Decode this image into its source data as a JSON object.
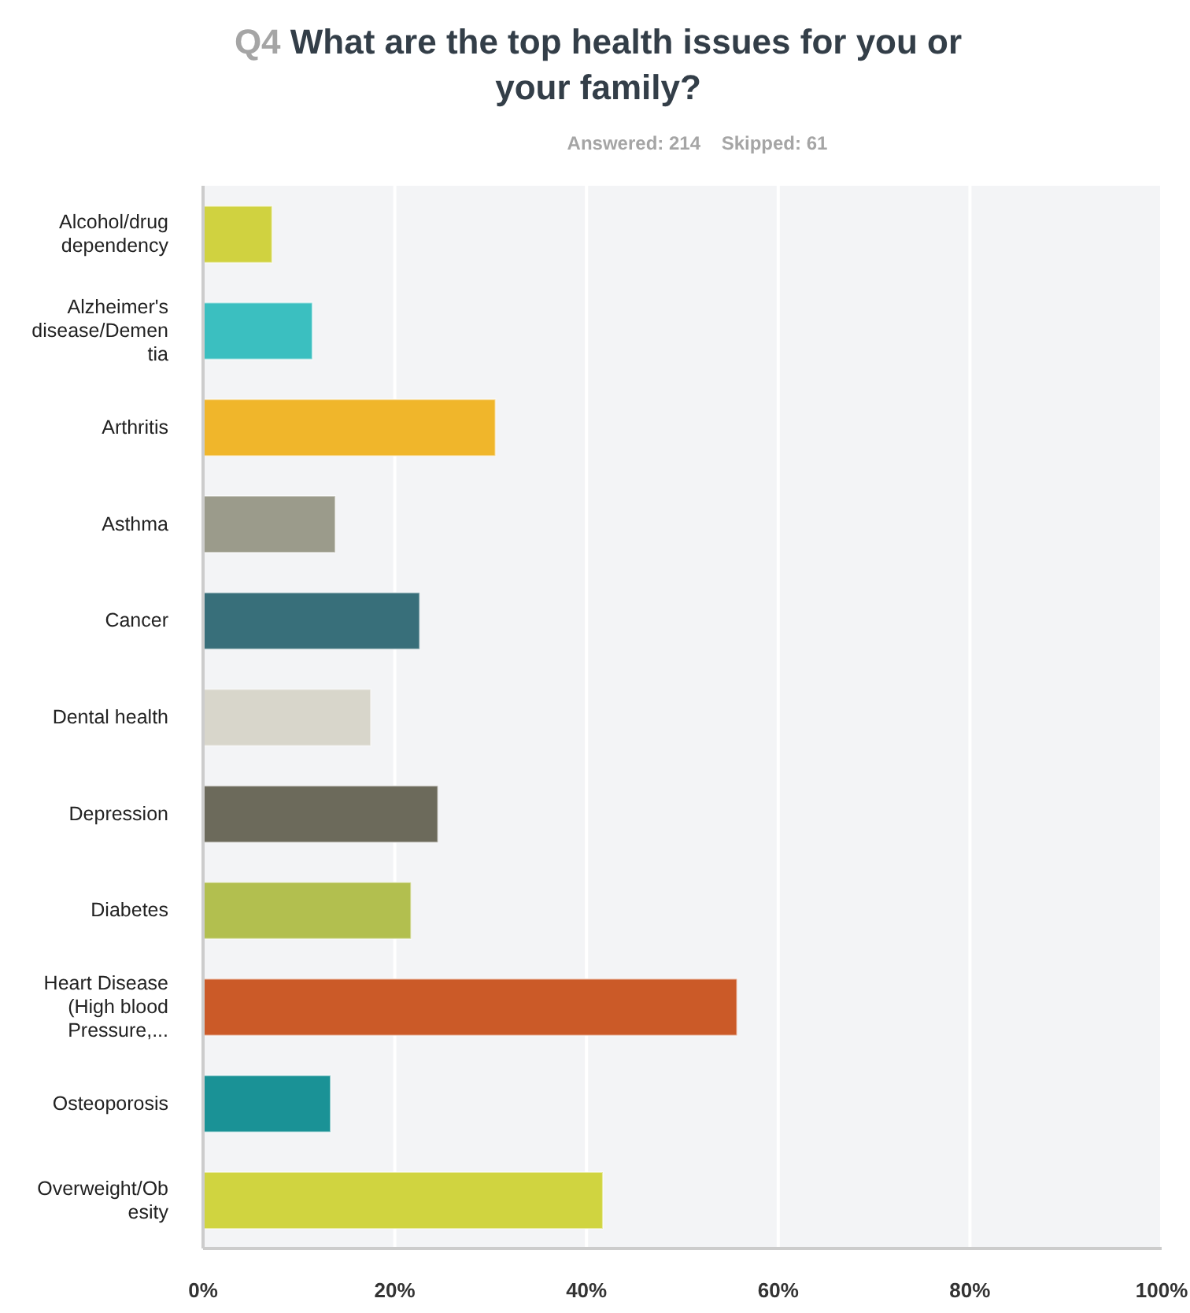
{
  "chart_data": {
    "type": "bar",
    "orientation": "horizontal",
    "title": "Q4 What are the top health issues for you or your family?",
    "subtitle": "Answered: 214    Skipped: 61",
    "categories": [
      "Alcohol/drug dependency",
      "Alzheimer's disease/Dementia",
      "Arthritis",
      "Asthma",
      "Cancer",
      "Dental health",
      "Depression",
      "Diabetes",
      "Heart Disease (High blood Pressure,...",
      "Osteoporosis",
      "Overweight/Obesity"
    ],
    "values": [
      7.2,
      11.4,
      30.5,
      13.8,
      22.6,
      17.5,
      24.5,
      21.7,
      55.7,
      13.3,
      41.7
    ],
    "colors": [
      "#d0d240",
      "#3bbfc0",
      "#f0b62b",
      "#9b9b8b",
      "#386f7a",
      "#d8d6cb",
      "#6c6a5b",
      "#b2bf4f",
      "#cb5a28",
      "#1a9296",
      "#d0d440"
    ],
    "xlim": [
      0,
      100
    ],
    "xticks": [
      {
        "value": 0,
        "label": "0%"
      },
      {
        "value": 20,
        "label": "20%"
      },
      {
        "value": 40,
        "label": "40%"
      },
      {
        "value": 60,
        "label": "60%"
      },
      {
        "value": 80,
        "label": "80%"
      },
      {
        "value": 100,
        "label": "100%"
      }
    ],
    "grid": "x",
    "legend": false
  }
}
